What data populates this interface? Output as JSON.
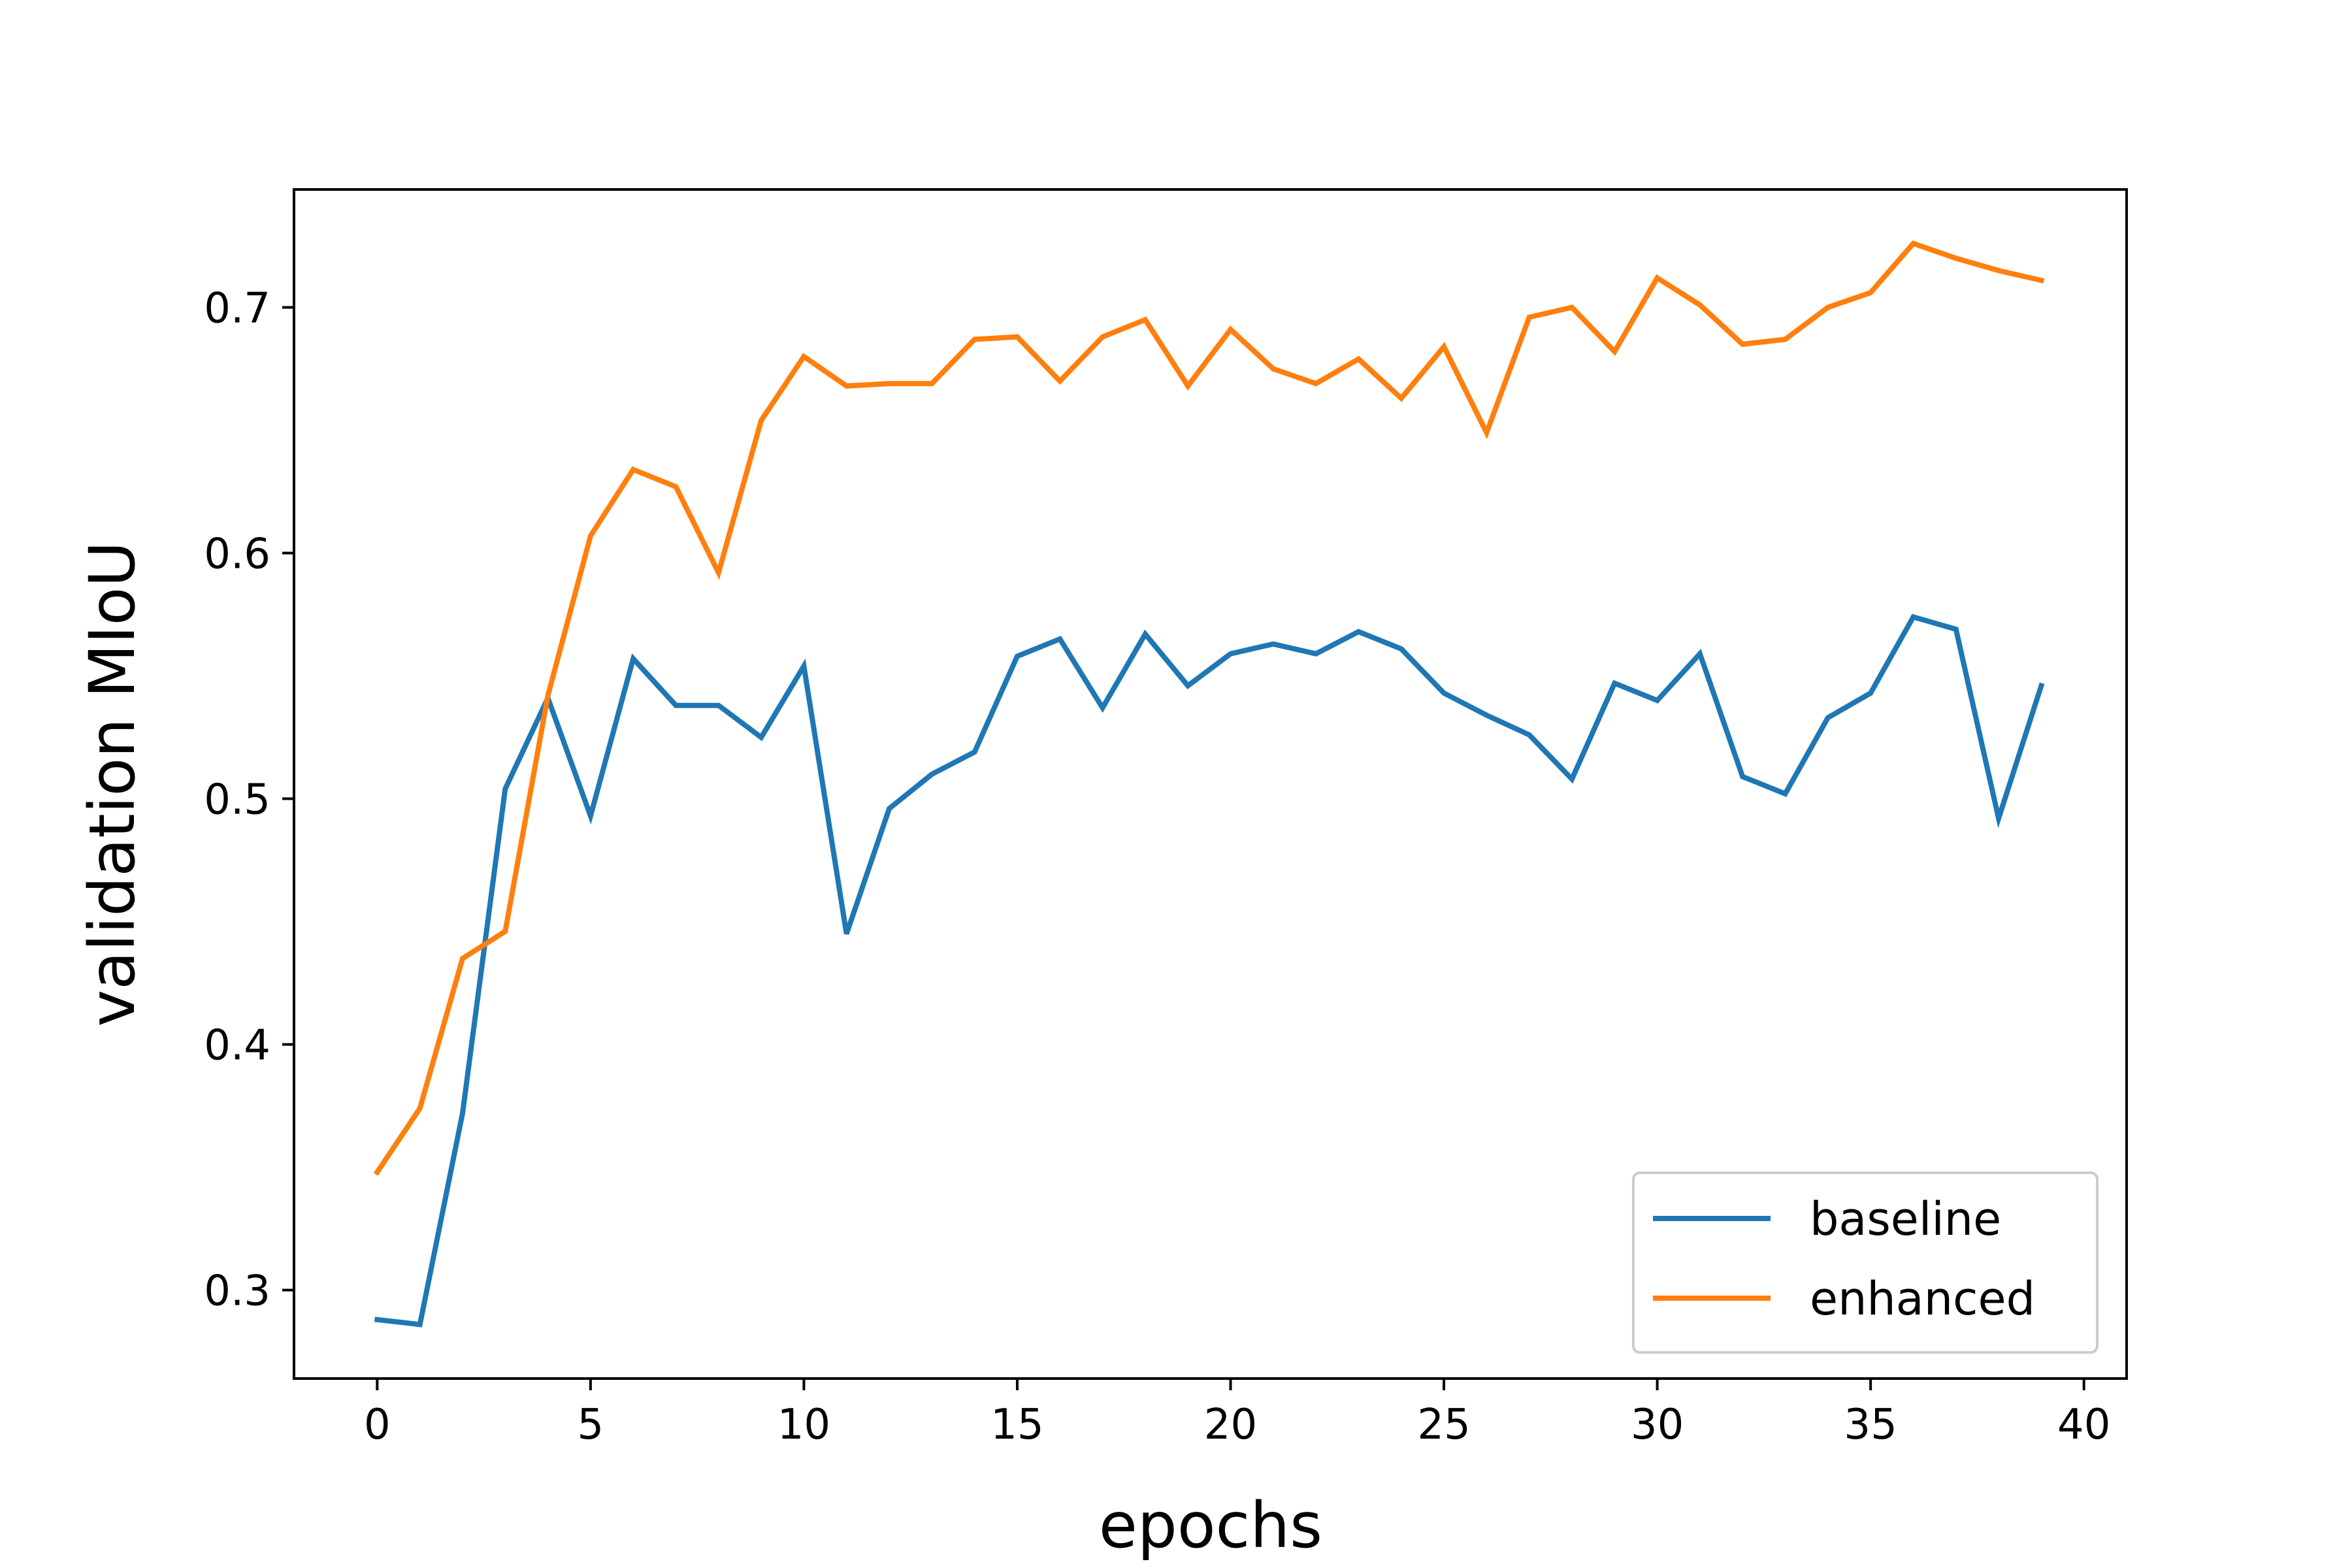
{
  "chart_data": {
    "type": "line",
    "title": "",
    "xlabel": "epochs",
    "ylabel": "validation MIoU",
    "xlim": [
      -1.95,
      41.0
    ],
    "ylim": [
      0.264,
      0.748
    ],
    "x_ticks": [
      0,
      5,
      10,
      15,
      20,
      25,
      30,
      35,
      40
    ],
    "y_ticks": [
      0.3,
      0.4,
      0.5,
      0.6,
      0.7
    ],
    "grid": false,
    "legend_position": "lower-right",
    "x": [
      0,
      1,
      2,
      3,
      4,
      5,
      6,
      7,
      8,
      9,
      10,
      11,
      12,
      13,
      14,
      15,
      16,
      17,
      18,
      19,
      20,
      21,
      22,
      23,
      24,
      25,
      26,
      27,
      28,
      29,
      30,
      31,
      32,
      33,
      34,
      35,
      36,
      37,
      38,
      39
    ],
    "series": [
      {
        "name": "baseline",
        "color": "#1f77b4",
        "values": [
          0.288,
          0.286,
          0.372,
          0.504,
          0.541,
          0.493,
          0.557,
          0.538,
          0.538,
          0.525,
          0.554,
          0.445,
          0.496,
          0.51,
          0.519,
          0.558,
          0.565,
          0.537,
          0.567,
          0.546,
          0.559,
          0.563,
          0.559,
          0.568,
          0.561,
          0.543,
          0.534,
          0.526,
          0.508,
          0.547,
          0.54,
          0.559,
          0.509,
          0.502,
          0.533,
          0.543,
          0.574,
          0.569,
          0.492,
          0.546
        ]
      },
      {
        "name": "enhanced",
        "color": "#ff7f0e",
        "values": [
          0.348,
          0.374,
          0.435,
          0.446,
          0.542,
          0.607,
          0.634,
          0.627,
          0.592,
          0.654,
          0.68,
          0.668,
          0.669,
          0.669,
          0.687,
          0.688,
          0.67,
          0.688,
          0.695,
          0.668,
          0.691,
          0.675,
          0.669,
          0.679,
          0.663,
          0.684,
          0.649,
          0.696,
          0.7,
          0.682,
          0.712,
          0.701,
          0.685,
          0.687,
          0.7,
          0.706,
          0.726,
          0.72,
          0.715,
          0.711
        ]
      }
    ]
  }
}
